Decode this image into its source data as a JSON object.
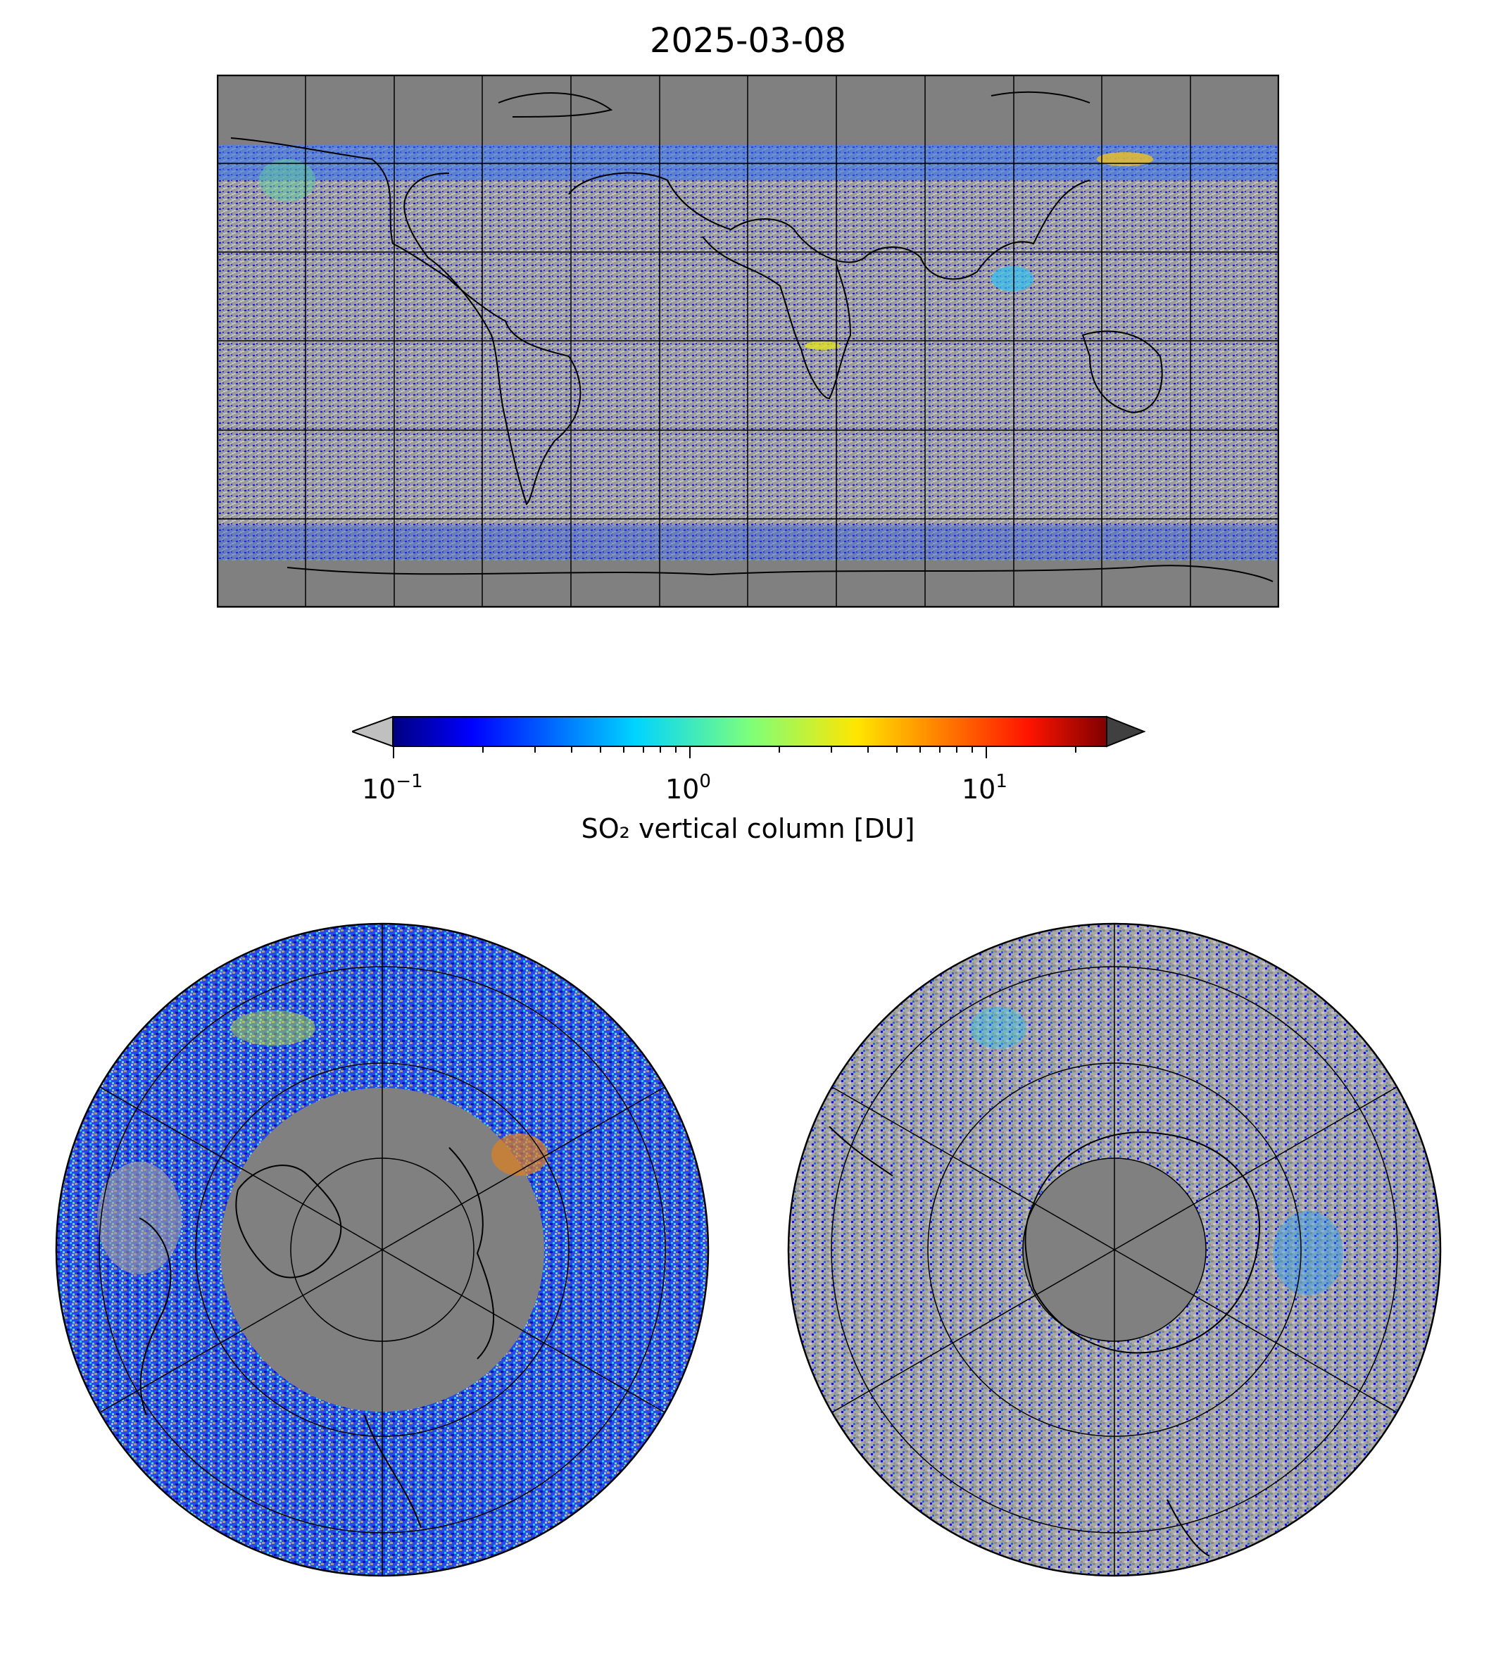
{
  "figure": {
    "title": "2025-03-08"
  },
  "colorbar": {
    "label": "SO₂ vertical column [DU]",
    "scale": "log",
    "colormap": "jet",
    "extend": "both",
    "under_color": "#c0c0c0",
    "over_color": "#404040",
    "ticks": [
      {
        "base": "10",
        "exponent": "−1",
        "value": 0.1
      },
      {
        "base": "10",
        "exponent": "0",
        "value": 1
      },
      {
        "base": "10",
        "exponent": "1",
        "value": 10
      }
    ],
    "range": [
      0.1,
      25
    ]
  },
  "maps": [
    {
      "name": "global",
      "projection": "PlateCarree",
      "gridlines": "every 30° lon, 30° lat",
      "land_color": "#808080"
    },
    {
      "name": "north-pole",
      "projection": "NorthPolarStereo",
      "land_color": "#808080"
    },
    {
      "name": "south-pole",
      "projection": "SouthPolarStereo",
      "land_color": "#808080"
    }
  ]
}
